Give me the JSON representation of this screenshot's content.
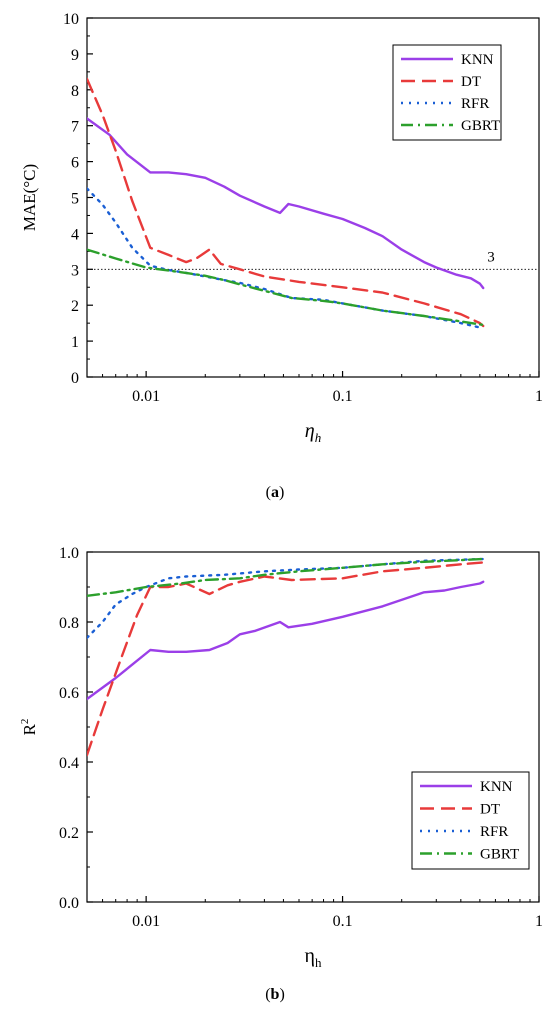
{
  "chart_data": [
    {
      "type": "line",
      "caption_letter": "a",
      "xlabel_main": "η",
      "xlabel_sub": "h",
      "ylabel": "MAE(°C)",
      "xscale": "log",
      "xlim": [
        0.005,
        1
      ],
      "ylim": [
        0,
        10
      ],
      "xticks": [
        0.01,
        0.1,
        1
      ],
      "xtick_labels": [
        "0.01",
        "0.1",
        "1"
      ],
      "yticks": [
        0,
        1,
        2,
        3,
        4,
        5,
        6,
        7,
        8,
        9,
        10
      ],
      "ytick_labels": [
        "0",
        "1",
        "2",
        "3",
        "4",
        "5",
        "6",
        "7",
        "8",
        "9",
        "10"
      ],
      "legend_position": "top-right",
      "grid": false,
      "reference_line": {
        "y": 3,
        "label": "3",
        "style": "dotted"
      },
      "series": [
        {
          "name": "KNN",
          "color": "#9b3fe8",
          "dash": "solid",
          "x": [
            0.005,
            0.0065,
            0.008,
            0.0105,
            0.013,
            0.016,
            0.02,
            0.025,
            0.03,
            0.04,
            0.048,
            0.053,
            0.06,
            0.08,
            0.1,
            0.13,
            0.16,
            0.2,
            0.26,
            0.3,
            0.38,
            0.45,
            0.5,
            0.52
          ],
          "y": [
            7.2,
            6.75,
            6.2,
            5.7,
            5.7,
            5.65,
            5.55,
            5.3,
            5.05,
            4.75,
            4.57,
            4.82,
            4.75,
            4.55,
            4.4,
            4.15,
            3.92,
            3.55,
            3.2,
            3.05,
            2.85,
            2.75,
            2.6,
            2.48
          ]
        },
        {
          "name": "DT",
          "color": "#e83a3a",
          "dash": "dashed",
          "x": [
            0.005,
            0.006,
            0.007,
            0.0085,
            0.0105,
            0.013,
            0.016,
            0.018,
            0.021,
            0.024,
            0.03,
            0.04,
            0.06,
            0.1,
            0.16,
            0.26,
            0.4,
            0.5,
            0.52
          ],
          "y": [
            8.3,
            7.3,
            6.3,
            4.9,
            3.6,
            3.4,
            3.2,
            3.3,
            3.55,
            3.15,
            3.0,
            2.8,
            2.65,
            2.5,
            2.35,
            2.05,
            1.75,
            1.5,
            1.42
          ]
        },
        {
          "name": "RFR",
          "color": "#1a5fd4",
          "dash": "dotted",
          "x": [
            0.005,
            0.006,
            0.007,
            0.0085,
            0.0105,
            0.013,
            0.016,
            0.02,
            0.025,
            0.03,
            0.04,
            0.055,
            0.08,
            0.1,
            0.16,
            0.26,
            0.4,
            0.5,
            0.52
          ],
          "y": [
            5.25,
            4.8,
            4.3,
            3.6,
            3.1,
            2.98,
            2.9,
            2.8,
            2.7,
            2.62,
            2.45,
            2.2,
            2.15,
            2.05,
            1.85,
            1.7,
            1.5,
            1.38,
            1.35
          ]
        },
        {
          "name": "GBRT",
          "color": "#2ca02c",
          "dash": "dashdot",
          "x": [
            0.005,
            0.007,
            0.01,
            0.015,
            0.02,
            0.025,
            0.03,
            0.04,
            0.055,
            0.08,
            0.1,
            0.16,
            0.26,
            0.4,
            0.52
          ],
          "y": [
            3.55,
            3.3,
            3.05,
            2.92,
            2.82,
            2.7,
            2.58,
            2.4,
            2.2,
            2.12,
            2.05,
            1.85,
            1.7,
            1.55,
            1.45
          ]
        }
      ]
    },
    {
      "type": "line",
      "caption_letter": "b",
      "xlabel_main": "η",
      "xlabel_sub": "h",
      "ylabel_main": "R",
      "ylabel_sup": "2",
      "xscale": "log",
      "xlim": [
        0.005,
        1
      ],
      "ylim": [
        0,
        1
      ],
      "xticks": [
        0.01,
        0.1,
        1
      ],
      "xtick_labels": [
        "0.01",
        "0.1",
        "1"
      ],
      "yticks": [
        0,
        0.2,
        0.4,
        0.6,
        0.8,
        1.0
      ],
      "ytick_labels": [
        "0.0",
        "0.2",
        "0.4",
        "0.6",
        "0.8",
        "1.0"
      ],
      "legend_position": "bottom-right",
      "grid": false,
      "series": [
        {
          "name": "KNN",
          "color": "#9b3fe8",
          "dash": "solid",
          "x": [
            0.005,
            0.007,
            0.0105,
            0.013,
            0.016,
            0.021,
            0.026,
            0.03,
            0.036,
            0.048,
            0.053,
            0.07,
            0.1,
            0.16,
            0.26,
            0.33,
            0.4,
            0.5,
            0.52
          ],
          "y": [
            0.58,
            0.64,
            0.72,
            0.715,
            0.715,
            0.72,
            0.74,
            0.765,
            0.775,
            0.8,
            0.785,
            0.795,
            0.815,
            0.845,
            0.885,
            0.89,
            0.9,
            0.91,
            0.915
          ]
        },
        {
          "name": "DT",
          "color": "#e83a3a",
          "dash": "dashed",
          "x": [
            0.005,
            0.006,
            0.0075,
            0.009,
            0.0105,
            0.013,
            0.016,
            0.021,
            0.026,
            0.03,
            0.04,
            0.055,
            0.1,
            0.16,
            0.26,
            0.4,
            0.52
          ],
          "y": [
            0.42,
            0.55,
            0.7,
            0.82,
            0.9,
            0.9,
            0.91,
            0.88,
            0.905,
            0.915,
            0.93,
            0.92,
            0.925,
            0.945,
            0.955,
            0.965,
            0.97
          ]
        },
        {
          "name": "RFR",
          "color": "#1a5fd4",
          "dash": "dotted",
          "x": [
            0.005,
            0.006,
            0.007,
            0.0085,
            0.01,
            0.013,
            0.016,
            0.025,
            0.04,
            0.06,
            0.1,
            0.16,
            0.26,
            0.4,
            0.52
          ],
          "y": [
            0.755,
            0.8,
            0.85,
            0.88,
            0.9,
            0.925,
            0.93,
            0.935,
            0.945,
            0.95,
            0.955,
            0.965,
            0.975,
            0.978,
            0.98
          ]
        },
        {
          "name": "GBRT",
          "color": "#2ca02c",
          "dash": "dashdot",
          "x": [
            0.005,
            0.007,
            0.01,
            0.015,
            0.02,
            0.03,
            0.04,
            0.06,
            0.1,
            0.16,
            0.26,
            0.4,
            0.52
          ],
          "y": [
            0.875,
            0.885,
            0.9,
            0.91,
            0.92,
            0.925,
            0.935,
            0.945,
            0.955,
            0.965,
            0.972,
            0.977,
            0.98
          ]
        }
      ]
    }
  ]
}
